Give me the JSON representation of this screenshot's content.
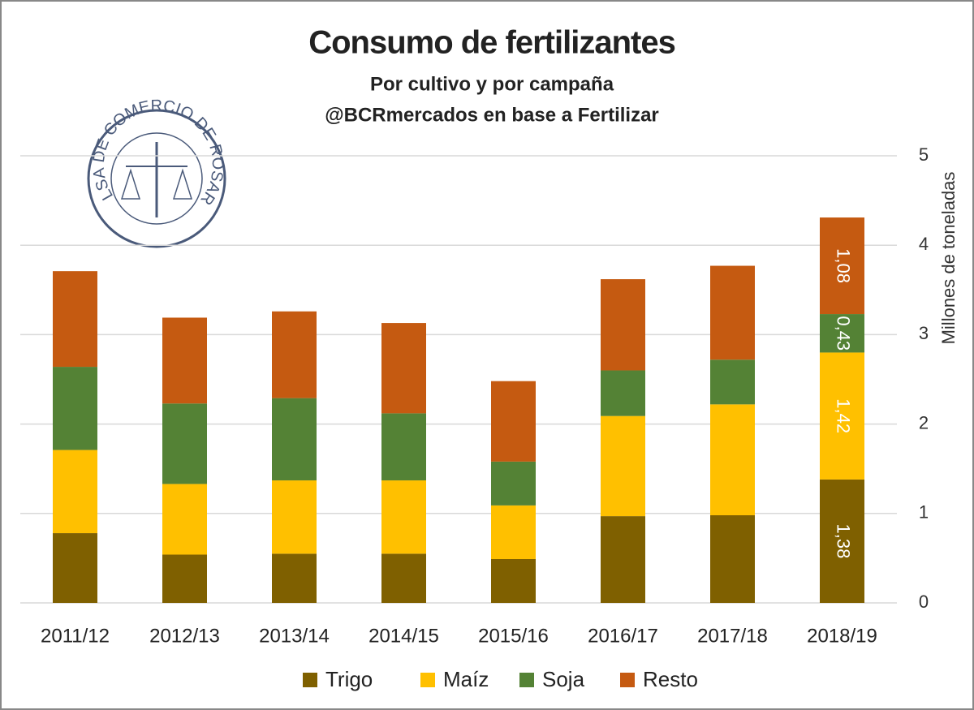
{
  "chart_data": {
    "type": "stacked_bar",
    "title": "Consumo de fertilizantes",
    "subtitle": [
      "Por cultivo y por campaña",
      "@BCRmercados en base a Fertilizar"
    ],
    "logo_text": "BOLSA DE COMERCIO DE ROSARIO",
    "y_axis_label": "Millones de toneladas",
    "categories": [
      "2011/12",
      "2012/13",
      "2013/14",
      "2014/15",
      "2015/16",
      "2016/17",
      "2017/18",
      "2018/19"
    ],
    "series": [
      {
        "name": "Trigo",
        "color": "#7f6000",
        "values": [
          0.78,
          0.54,
          0.55,
          0.55,
          0.49,
          0.97,
          0.98,
          1.38
        ],
        "value_labels": [
          null,
          null,
          null,
          null,
          null,
          null,
          null,
          "1,38"
        ]
      },
      {
        "name": "Maíz",
        "color": "#ffc000",
        "values": [
          0.93,
          0.79,
          0.82,
          0.82,
          0.6,
          1.12,
          1.24,
          1.42
        ],
        "value_labels": [
          null,
          null,
          null,
          null,
          null,
          null,
          null,
          "1,42"
        ]
      },
      {
        "name": "Soja",
        "color": "#548235",
        "values": [
          0.93,
          0.9,
          0.92,
          0.75,
          0.49,
          0.51,
          0.5,
          0.43
        ],
        "value_labels": [
          null,
          null,
          null,
          null,
          null,
          null,
          null,
          "0,43"
        ]
      },
      {
        "name": "Resto",
        "color": "#c55a11",
        "values": [
          1.07,
          0.96,
          0.97,
          1.01,
          0.9,
          1.02,
          1.05,
          1.08
        ],
        "value_labels": [
          null,
          null,
          null,
          null,
          null,
          null,
          null,
          "1,08"
        ]
      }
    ],
    "ylim": [
      0,
      5
    ],
    "yticks": [
      0,
      1,
      2,
      3,
      4,
      5
    ],
    "grid": true,
    "legend": "bottom"
  }
}
